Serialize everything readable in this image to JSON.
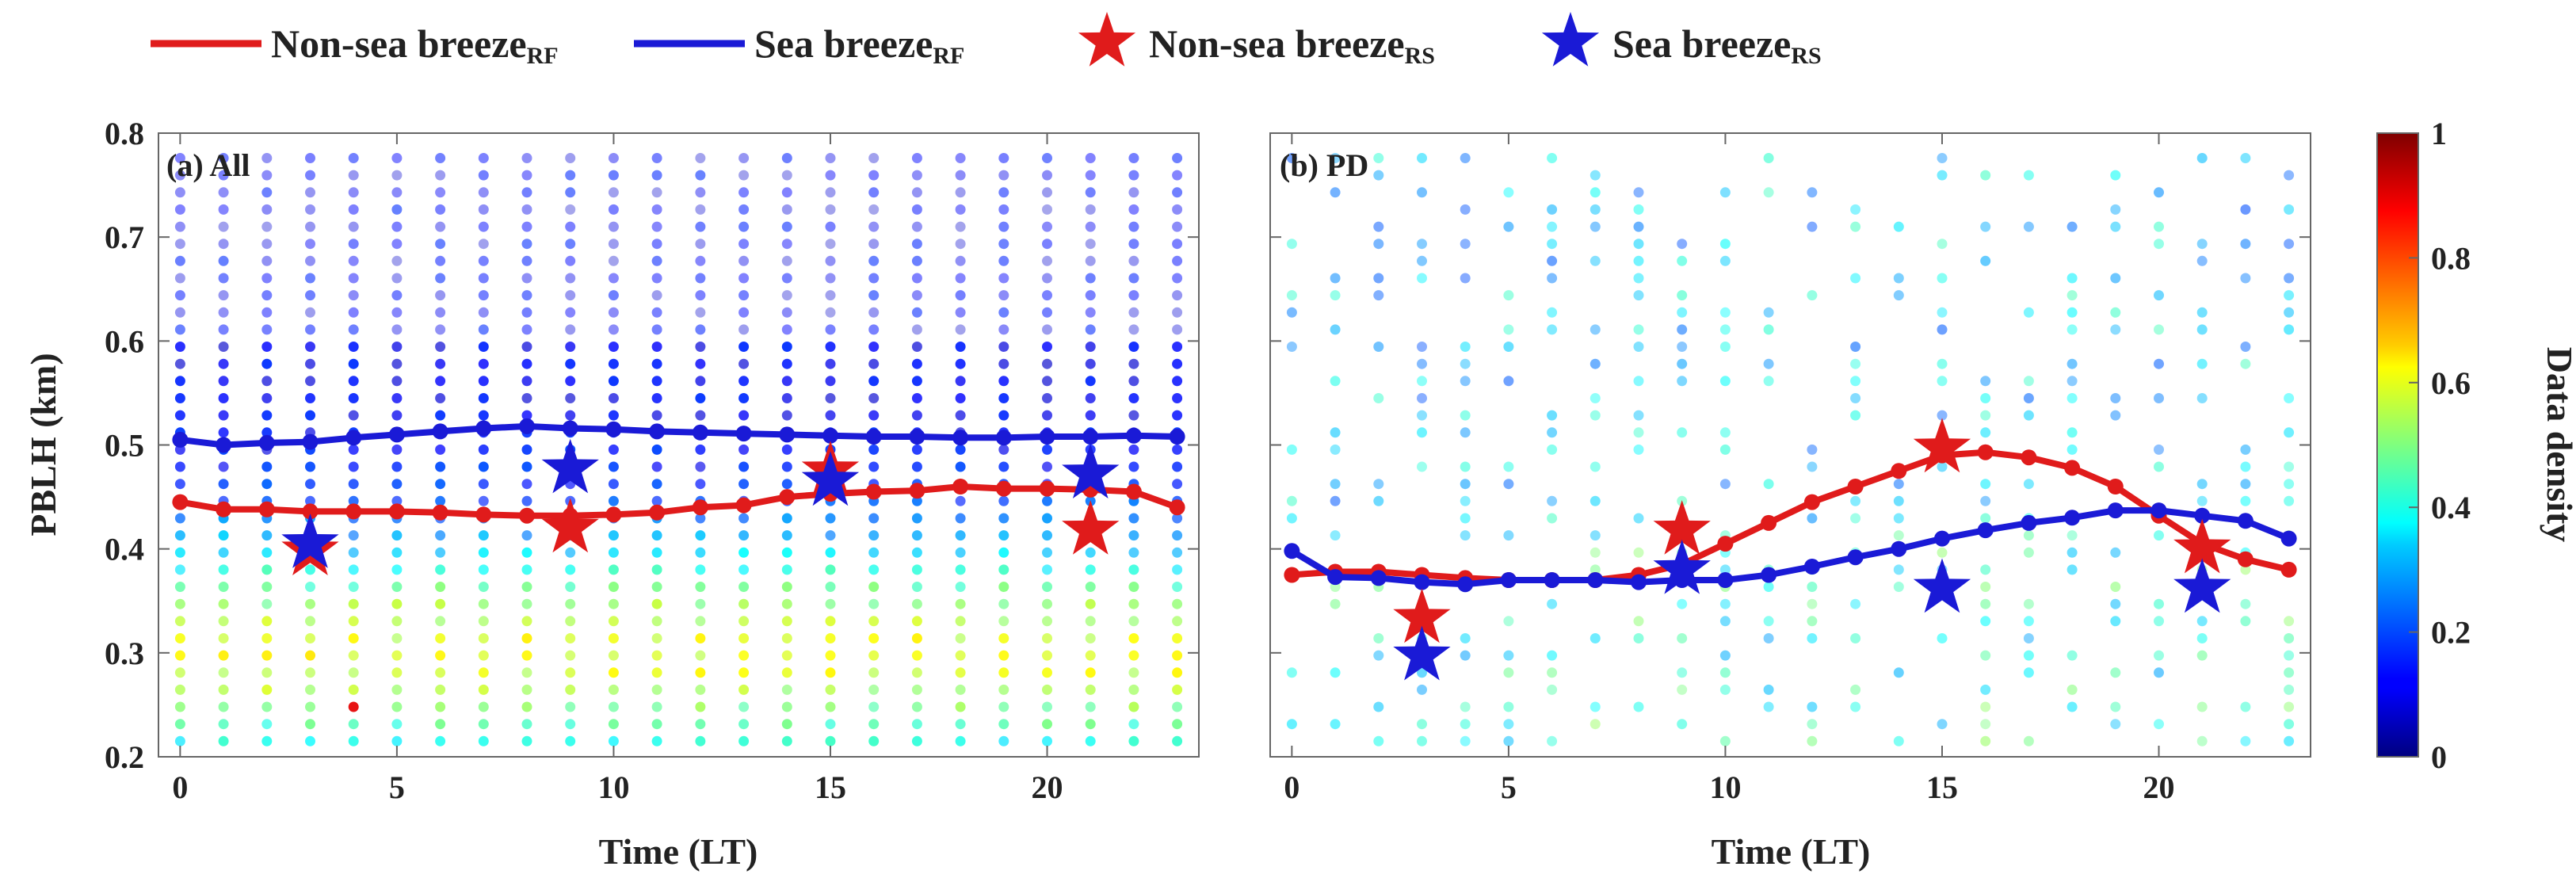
{
  "legend": [
    {
      "label": "Non-sea breeze",
      "sub": "RF",
      "kind": "line",
      "color": "#e01b1b"
    },
    {
      "label": "Sea breeze",
      "sub": "RF",
      "kind": "line",
      "color": "#1a1ad6"
    },
    {
      "label": "Non-sea breeze",
      "sub": "RS",
      "kind": "star",
      "color": "#e01b1b"
    },
    {
      "label": "Sea breeze",
      "sub": "RS",
      "kind": "star",
      "color": "#1a1ad6"
    }
  ],
  "chart_data": [
    {
      "type": "line",
      "title": "(a) All",
      "xlabel": "Time (LT)",
      "ylabel": "PBLH (km)",
      "xlim": [
        -0.5,
        23.5
      ],
      "ylim": [
        0.2,
        0.8
      ],
      "xticks": [
        0,
        5,
        10,
        15,
        20
      ],
      "yticks": [
        0.2,
        0.3,
        0.4,
        0.5,
        0.6,
        0.7,
        0.8
      ],
      "x": [
        0,
        1,
        2,
        3,
        4,
        5,
        6,
        7,
        8,
        9,
        10,
        11,
        12,
        13,
        14,
        15,
        16,
        17,
        18,
        19,
        20,
        21,
        22,
        23
      ],
      "series": [
        {
          "name": "Non-sea breeze RF",
          "color": "#e01b1b",
          "values": [
            0.445,
            0.438,
            0.438,
            0.436,
            0.436,
            0.436,
            0.435,
            0.433,
            0.432,
            0.432,
            0.433,
            0.435,
            0.44,
            0.442,
            0.45,
            0.453,
            0.455,
            0.456,
            0.46,
            0.458,
            0.458,
            0.457,
            0.455,
            0.44
          ]
        },
        {
          "name": "Sea breeze RF",
          "color": "#1a1ad6",
          "values": [
            0.505,
            0.5,
            0.502,
            0.503,
            0.507,
            0.51,
            0.513,
            0.516,
            0.518,
            0.516,
            0.515,
            0.513,
            0.512,
            0.511,
            0.51,
            0.509,
            0.508,
            0.508,
            0.507,
            0.507,
            0.508,
            0.508,
            0.509,
            0.508
          ]
        }
      ],
      "stars": [
        {
          "name": "Non-sea breeze RS",
          "color": "#e01b1b",
          "x": [
            3,
            9,
            15,
            21
          ],
          "values": [
            0.398,
            0.42,
            0.475,
            0.418
          ]
        },
        {
          "name": "Sea breeze RS",
          "color": "#1a1ad6",
          "x": [
            3,
            9,
            15,
            21
          ],
          "values": [
            0.405,
            0.477,
            0.465,
            0.472
          ]
        }
      ],
      "density_profile": "all"
    },
    {
      "type": "line",
      "title": "(b) PD",
      "xlabel": "Time (LT)",
      "ylabel": "",
      "xlim": [
        -0.5,
        23.5
      ],
      "ylim": [
        0.2,
        0.8
      ],
      "xticks": [
        0,
        5,
        10,
        15,
        20
      ],
      "yticks": [
        0.2,
        0.3,
        0.4,
        0.5,
        0.6,
        0.7,
        0.8
      ],
      "x": [
        0,
        1,
        2,
        3,
        4,
        5,
        6,
        7,
        8,
        9,
        10,
        11,
        12,
        13,
        14,
        15,
        16,
        17,
        18,
        19,
        20,
        21,
        22,
        23
      ],
      "series": [
        {
          "name": "Non-sea breeze RF",
          "color": "#e01b1b",
          "values": [
            0.375,
            0.378,
            0.378,
            0.375,
            0.372,
            0.37,
            0.37,
            0.37,
            0.375,
            0.385,
            0.405,
            0.425,
            0.445,
            0.46,
            0.475,
            0.49,
            0.493,
            0.488,
            0.478,
            0.46,
            0.432,
            0.405,
            0.39,
            0.38
          ]
        },
        {
          "name": "Sea breeze RF",
          "color": "#1a1ad6",
          "values": [
            0.398,
            0.373,
            0.372,
            0.368,
            0.366,
            0.37,
            0.37,
            0.37,
            0.368,
            0.37,
            0.37,
            0.375,
            0.383,
            0.392,
            0.4,
            0.41,
            0.418,
            0.425,
            0.43,
            0.437,
            0.437,
            0.432,
            0.427,
            0.41
          ]
        }
      ],
      "stars": [
        {
          "name": "Non-sea breeze RS",
          "color": "#e01b1b",
          "x": [
            3,
            9,
            15,
            21
          ],
          "values": [
            0.333,
            0.418,
            0.497,
            0.4
          ]
        },
        {
          "name": "Sea breeze RS",
          "color": "#1a1ad6",
          "x": [
            3,
            9,
            15,
            21
          ],
          "values": [
            0.297,
            0.38,
            0.362,
            0.362
          ]
        }
      ],
      "density_profile": "pd"
    }
  ],
  "colorbar": {
    "label": "Data density",
    "ticks": [
      0,
      0.2,
      0.4,
      0.6,
      0.8,
      1
    ],
    "tick_labels": [
      "0",
      "0.2",
      "0.4",
      "0.6",
      "0.8",
      "1"
    ],
    "colormap": "jet"
  }
}
